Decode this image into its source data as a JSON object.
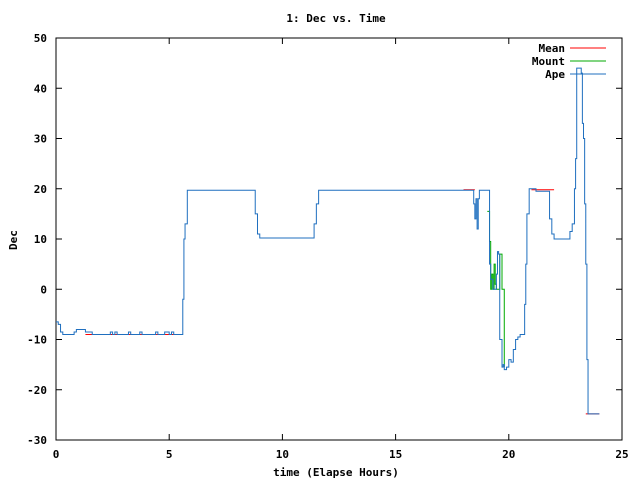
{
  "chart_data": {
    "type": "line",
    "title": "1: Dec vs. Time",
    "xlabel": "time (Elapse Hours)",
    "ylabel": "Dec",
    "xlim": [
      0,
      25
    ],
    "ylim": [
      -30,
      50
    ],
    "xticks": [
      0,
      5,
      10,
      15,
      20,
      25
    ],
    "yticks": [
      -30,
      -20,
      -10,
      0,
      10,
      20,
      30,
      40,
      50
    ],
    "grid": false,
    "legend_position": "top-right",
    "series": [
      {
        "name": "Mean",
        "color": "#ff0000",
        "x": [
          1.3,
          5.4,
          18.0,
          18.5,
          21.0,
          22.0,
          23.4,
          24.0
        ],
        "y": [
          -9.0,
          -9.0,
          19.8,
          19.8,
          19.8,
          19.8,
          -24.8,
          -24.8
        ],
        "segments": [
          [
            0,
            1
          ],
          [
            2,
            3
          ],
          [
            4,
            5
          ],
          [
            6,
            7
          ]
        ]
      },
      {
        "name": "Mount",
        "color": "#00aa00",
        "x": [
          19.05,
          19.15,
          19.2,
          19.25,
          19.3,
          19.35,
          19.4,
          19.45,
          19.5,
          19.6,
          19.7,
          19.8
        ],
        "y": [
          15.5,
          9.5,
          0.0,
          3.0,
          0.0,
          5.0,
          1.0,
          0.0,
          0.0,
          7.0,
          0.0,
          -15.5
        ]
      },
      {
        "name": "Ape",
        "color": "#1f6fbf",
        "x": [
          0.0,
          0.1,
          0.2,
          0.3,
          0.7,
          0.8,
          0.9,
          1.0,
          1.1,
          1.3,
          1.5,
          1.6,
          1.7,
          2.3,
          2.4,
          2.5,
          2.6,
          2.7,
          3.1,
          3.2,
          3.3,
          3.6,
          3.7,
          3.8,
          4.0,
          4.3,
          4.4,
          4.5,
          4.7,
          4.8,
          5.0,
          5.1,
          5.2,
          5.5,
          5.6,
          5.65,
          5.7,
          5.8,
          8.7,
          8.8,
          8.9,
          9.0,
          11.3,
          11.4,
          11.5,
          11.6,
          18.4,
          18.45,
          18.5,
          18.55,
          18.6,
          18.65,
          18.7,
          19.1,
          19.15,
          19.2,
          19.3,
          19.4,
          19.45,
          19.5,
          19.55,
          19.6,
          19.7,
          19.75,
          19.8,
          19.9,
          20.0,
          20.1,
          20.2,
          20.3,
          20.4,
          20.5,
          20.7,
          20.75,
          20.8,
          20.9,
          21.0,
          21.2,
          21.7,
          21.8,
          21.9,
          22.0,
          22.6,
          22.7,
          22.8,
          22.9,
          22.95,
          23.0,
          23.2,
          23.25,
          23.3,
          23.35,
          23.4,
          23.45,
          23.5,
          24.0
        ],
        "y": [
          -6.5,
          -7.0,
          -8.5,
          -9.0,
          -9.0,
          -8.5,
          -8.0,
          -8.0,
          -8.0,
          -8.5,
          -8.5,
          -9.0,
          -9.0,
          -9.0,
          -8.5,
          -9.0,
          -8.5,
          -9.0,
          -9.0,
          -8.5,
          -9.0,
          -9.0,
          -8.5,
          -9.0,
          -9.0,
          -9.0,
          -8.5,
          -9.0,
          -9.0,
          -8.5,
          -9.0,
          -8.5,
          -9.0,
          -9.0,
          -2.0,
          10.0,
          13.0,
          19.7,
          19.7,
          15.0,
          11.0,
          10.2,
          10.2,
          13.0,
          17.0,
          19.7,
          19.7,
          17.0,
          14.0,
          18.0,
          12.0,
          18.0,
          19.7,
          19.7,
          5.0,
          2.0,
          0.0,
          0.0,
          3.0,
          7.5,
          7.0,
          -10.0,
          -15.5,
          -15.0,
          -16.0,
          -15.5,
          -14.0,
          -14.5,
          -12.0,
          -10.0,
          -9.5,
          -9.0,
          -3.0,
          5.0,
          15.0,
          20.0,
          20.0,
          19.5,
          19.5,
          14.0,
          11.0,
          10.0,
          10.0,
          11.5,
          13.0,
          20.0,
          26.0,
          44.0,
          43.0,
          33.0,
          30.0,
          17.0,
          5.0,
          -14.0,
          -24.8,
          -24.8
        ]
      }
    ]
  }
}
